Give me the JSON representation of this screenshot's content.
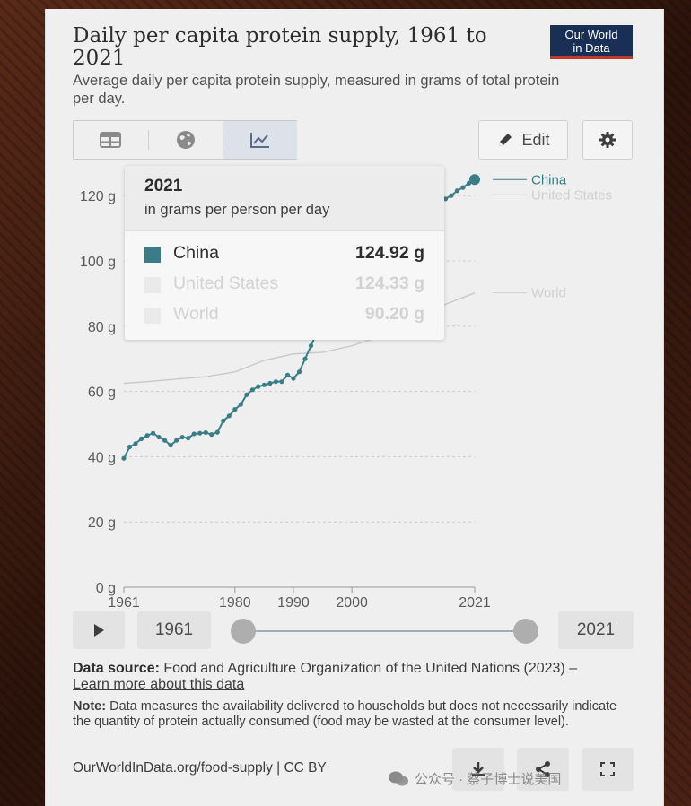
{
  "header": {
    "title": "Daily per capita protein supply, 1961 to 2021",
    "subtitle": "Average daily per capita protein supply, measured in grams of total protein per day.",
    "logo_line1": "Our World",
    "logo_line2": "in Data"
  },
  "toolbar": {
    "tabs": [
      {
        "icon": "table-icon"
      },
      {
        "icon": "globe-icon"
      },
      {
        "icon": "line-chart-icon",
        "active": true
      }
    ],
    "edit_label": "Edit"
  },
  "colors": {
    "china": "#3a7d88",
    "faded": "#c9c9c9",
    "grid": "#cccccc"
  },
  "chart_data": {
    "type": "line",
    "title": "Daily per capita protein supply, 1961 to 2021",
    "ylabel": "",
    "xlabel": "",
    "ylim": [
      0,
      125
    ],
    "xlim": [
      1961,
      2021
    ],
    "y_ticks": [
      "0 g",
      "20 g",
      "40 g",
      "60 g",
      "80 g",
      "100 g",
      "120 g"
    ],
    "y_tick_values": [
      0,
      20,
      40,
      60,
      80,
      100,
      120
    ],
    "x_ticks": [
      "1961",
      "1980",
      "1990",
      "2000",
      "2021"
    ],
    "x_tick_values": [
      1961,
      1980,
      1990,
      2000,
      2021
    ],
    "grid": "horizontal dashed",
    "highlighted_series": "China",
    "series": [
      {
        "name": "China",
        "x": [
          1961,
          1962,
          1963,
          1964,
          1965,
          1966,
          1967,
          1968,
          1969,
          1970,
          1971,
          1972,
          1973,
          1974,
          1975,
          1976,
          1977,
          1978,
          1979,
          1980,
          1981,
          1982,
          1983,
          1984,
          1985,
          1986,
          1987,
          1988,
          1989,
          1990,
          1991,
          1992,
          1993,
          1994,
          1995,
          1996,
          1997,
          1998,
          1999,
          2000,
          2001,
          2002,
          2003,
          2004,
          2005,
          2006,
          2007,
          2008,
          2009,
          2010,
          2011,
          2012,
          2013,
          2014,
          2015,
          2016,
          2017,
          2018,
          2019,
          2020,
          2021
        ],
        "y": [
          39.5,
          43.0,
          44.0,
          45.5,
          46.5,
          47.2,
          46.0,
          45.0,
          43.5,
          45.0,
          46.0,
          45.7,
          47.0,
          47.2,
          47.4,
          46.8,
          47.5,
          51.0,
          52.5,
          54.5,
          56.0,
          59.0,
          60.5,
          61.5,
          62.0,
          62.5,
          63.0,
          63.0,
          65.0,
          64.0,
          66.0,
          70.0,
          74.0,
          78.0,
          81.0,
          83.0,
          85.0,
          87.0,
          89.0,
          91.0,
          93.0,
          95.0,
          97.0,
          99.0,
          101.0,
          103.0,
          105.0,
          107.0,
          109.0,
          111.0,
          113.0,
          114.5,
          116.0,
          117.0,
          118.0,
          119.0,
          120.0,
          121.5,
          122.5,
          123.8,
          124.92
        ]
      },
      {
        "name": "United States",
        "x": [
          1961,
          2021
        ],
        "y": [
          95.0,
          124.33
        ]
      },
      {
        "name": "World",
        "x": [
          1961,
          1965,
          1970,
          1975,
          1980,
          1985,
          1990,
          1995,
          2000,
          2005,
          2010,
          2015,
          2021
        ],
        "y": [
          62.5,
          63.0,
          63.8,
          64.5,
          66.0,
          69.5,
          71.5,
          72.0,
          74.0,
          77.0,
          82.0,
          86.0,
          90.2
        ]
      }
    ],
    "line_labels": [
      "China",
      "United States",
      "World"
    ]
  },
  "tooltip": {
    "year": "2021",
    "unit": "in grams per person per day",
    "rows": [
      {
        "name": "China",
        "value": "124.92 g"
      },
      {
        "name": "United States",
        "value": "124.33 g"
      },
      {
        "name": "World",
        "value": "90.20 g"
      }
    ]
  },
  "timeline": {
    "start_year": "1961",
    "end_year": "2021"
  },
  "source": {
    "label": "Data source:",
    "text": "Food and Agriculture Organization of the United Nations (2023) –",
    "link": "Learn more about this data"
  },
  "note": {
    "label": "Note:",
    "text": "Data measures the availability delivered to households but does not necessarily indicate the quantity of protein actually consumed (food may be wasted at the consumer level)."
  },
  "footer": {
    "text": "OurWorldInData.org/food-supply | CC BY"
  },
  "watermark": {
    "text": "公众号 · 蔡子博士说美国"
  }
}
